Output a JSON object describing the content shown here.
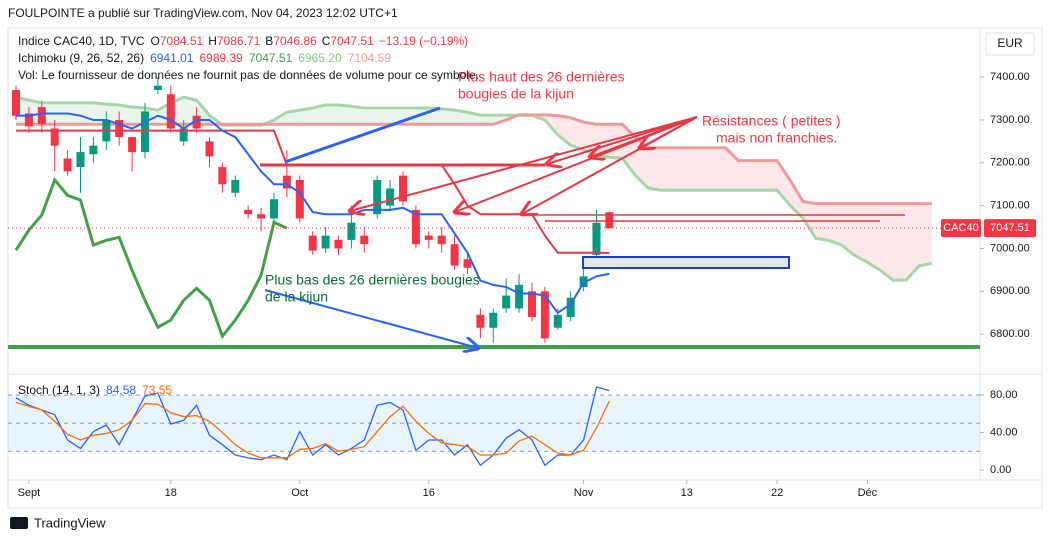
{
  "header": {
    "publisher": "FOULPOINTE a publié sur TradingView.com, Nov 04, 2023 12:02 UTC+1",
    "currency": "EUR",
    "brand": "TradingView"
  },
  "chart_data": [
    {
      "type": "candlestick",
      "title": "Indice CAC40, 1D, TVC",
      "legend_letters": [
        "O",
        "H",
        "B",
        "C"
      ],
      "change": "−13.19 (−0.19%)",
      "volume_note": "Vol: Le fournisseur de données ne fournit pas de données de volume pour ce symbole.",
      "symbol_tag": "CAC40",
      "up_color": "#089981",
      "down_color": "#f23645",
      "xlim": [
        -0.62,
        74.73
      ],
      "xticks": [
        {
          "value": 1,
          "label": "Sept"
        },
        {
          "value": 12,
          "label": "18"
        },
        {
          "value": 22,
          "label": "Oct"
        },
        {
          "value": 32,
          "label": "16"
        },
        {
          "value": 44,
          "label": "Nov"
        },
        {
          "value": 52,
          "label": "13"
        },
        {
          "value": 59,
          "label": "22"
        },
        {
          "value": 66,
          "label": "Déc"
        }
      ],
      "ylim": [
        6728,
        7510
      ],
      "yticks": [
        {
          "value": 6800,
          "label": "6800.00"
        },
        {
          "value": 6900,
          "label": "6900.00"
        },
        {
          "value": 7000,
          "label": "7000.00"
        },
        {
          "value": 7100,
          "label": "7100.00"
        },
        {
          "value": 7200,
          "label": "7200.00"
        },
        {
          "value": 7300,
          "label": "7300.00"
        },
        {
          "value": 7400,
          "label": "7400.00"
        }
      ],
      "open": [
        7370,
        7315,
        7330,
        7280,
        7210,
        7190,
        7220,
        7250,
        7300,
        7260,
        7225,
        7370,
        7360,
        7250,
        7310,
        7250,
        7190,
        7130,
        7090,
        7080,
        7070,
        7170,
        7160,
        7030,
        7000,
        7020,
        7020,
        7030,
        7080,
        7100,
        7170,
        7090,
        7030,
        7030,
        7010,
        6975,
        6845,
        6815,
        6860,
        6860,
        6900,
        6900,
        6815,
        6840,
        6910,
        6985,
        7084.51
      ],
      "high": [
        7380,
        7330,
        7345,
        7300,
        7230,
        7260,
        7260,
        7320,
        7320,
        7260,
        7340,
        7400,
        7380,
        7300,
        7330,
        7260,
        7200,
        7170,
        7100,
        7095,
        7130,
        7230,
        7170,
        7040,
        7050,
        7030,
        7100,
        7050,
        7170,
        7160,
        7180,
        7100,
        7040,
        7050,
        7030,
        6990,
        6860,
        6860,
        6930,
        6940,
        6920,
        6910,
        6860,
        6900,
        6960,
        7090,
        7086.71
      ],
      "low": [
        7300,
        7270,
        7270,
        7180,
        7170,
        7130,
        7200,
        7230,
        7240,
        7180,
        7210,
        7360,
        7270,
        7240,
        7270,
        7190,
        7130,
        7120,
        7070,
        7040,
        7060,
        7120,
        7060,
        6985,
        6990,
        6985,
        7000,
        6990,
        7070,
        7090,
        7100,
        7000,
        7000,
        6990,
        6950,
        6940,
        6790,
        6780,
        6850,
        6850,
        6830,
        6780,
        6810,
        6830,
        6900,
        6980,
        7046.86
      ],
      "close": [
        7310,
        7285,
        7290,
        7240,
        7180,
        7225,
        7240,
        7300,
        7260,
        7225,
        7320,
        7380,
        7280,
        7280,
        7280,
        7215,
        7150,
        7160,
        7080,
        7070,
        7115,
        7140,
        7070,
        6995,
        7030,
        7000,
        7060,
        7010,
        7160,
        7140,
        7110,
        7010,
        7020,
        7010,
        6960,
        6955,
        6815,
        6850,
        6890,
        6915,
        6840,
        6790,
        6845,
        6885,
        6935,
        7060,
        7047.51
      ],
      "ichimoku": {
        "title": "Ichimoku (9, 26, 52, 26)",
        "printed": [
          "6941.01",
          "6989.39",
          "7047.51",
          "6965.20",
          "7104.59"
        ],
        "conversion": {
          "color": "#2962ff",
          "values": [
            7310,
            7310,
            7315,
            7315,
            7315,
            7310,
            7300,
            7300,
            7290,
            7280,
            7295,
            7310,
            7300,
            7280,
            7300,
            7300,
            7275,
            7260,
            7220,
            7180,
            7150,
            7150,
            7130,
            7085,
            7080,
            7080,
            7080,
            7090,
            7090,
            7090,
            7095,
            7080,
            7080,
            7080,
            7035,
            6990,
            6925,
            6915,
            6910,
            6895,
            6895,
            6890,
            6850,
            6870,
            6920,
            6935,
            6941.01
          ]
        },
        "base": {
          "color": "#e53946",
          "values": [
            7275,
            7275,
            7275,
            7275,
            7275,
            7275,
            7275,
            7275,
            7275,
            7275,
            7275,
            7275,
            7275,
            7275,
            7275,
            7275,
            7275,
            7275,
            7275,
            7275,
            7275,
            7195,
            7195,
            7195,
            7195,
            7195,
            7195,
            7195,
            7195,
            7195,
            7195,
            7195,
            7195,
            7195,
            7150,
            7100,
            7080,
            7080,
            7080,
            7080,
            7080,
            7030,
            6990,
            6990,
            6990,
            6990,
            6989.39
          ]
        },
        "lagging": {
          "color": "#43a047",
          "values": [
            6996,
            7043,
            7078,
            7160,
            7124,
            7113,
            7008,
            7019,
            7026,
            6949,
            6879,
            6816,
            6833,
            6879,
            6907,
            6879,
            6795,
            6833,
            6879,
            6938,
            7061,
            7047.51
          ]
        },
        "span_a": {
          "color": "#a5d6a7",
          "values": [
            7353,
            7346,
            7340,
            7340,
            7340,
            7340,
            7340,
            7337,
            7335,
            7330,
            7328,
            7323,
            7340,
            7353,
            7346,
            7311,
            7288,
            7288,
            7288,
            7288,
            7300,
            7318,
            7323,
            7328,
            7335,
            7335,
            7332,
            7328,
            7328,
            7328,
            7328,
            7328,
            7328,
            7326,
            7323,
            7318,
            7311,
            7311,
            7311,
            7311,
            7311,
            7300,
            7265,
            7241,
            7230,
            7218,
            7213,
            7211,
            7171,
            7141,
            7136,
            7136,
            7136,
            7136,
            7136,
            7136,
            7136,
            7136,
            7136,
            7136,
            7101,
            7071,
            7024,
            7019,
            7008,
            6984,
            6968,
            6949,
            6926,
            6926,
            6959,
            6965.2
          ]
        },
        "span_b": {
          "color": "#ef9a9a",
          "values": [
            7290,
            7290,
            7290,
            7290,
            7290,
            7290,
            7290,
            7290,
            7290,
            7290,
            7290,
            7290,
            7290,
            7290,
            7290,
            7290,
            7290,
            7290,
            7290,
            7290,
            7290,
            7290,
            7290,
            7290,
            7290,
            7290,
            7290,
            7290,
            7290,
            7290,
            7290,
            7290,
            7290,
            7290,
            7290,
            7290,
            7290,
            7290,
            7300,
            7312,
            7312,
            7312,
            7310,
            7305,
            7295,
            7290,
            7290,
            7290,
            7260,
            7235,
            7235,
            7235,
            7235,
            7235,
            7235,
            7235,
            7205,
            7205,
            7205,
            7205,
            7160,
            7110,
            7104.59,
            7104.59,
            7104.59,
            7104.59,
            7104.59,
            7104.59,
            7104.59,
            7104.59,
            7104.59,
            7104.59
          ]
        },
        "cloud_up": "rgba(76,175,80,0.12)",
        "cloud_down": "rgba(242,54,69,0.12)"
      },
      "annotations": [
        {
          "lines": [
            "Plus haut des 26 dernières",
            "bougies de la kijun"
          ],
          "color": "#f23645"
        },
        {
          "lines": [
            "Résistances ( petites )",
            "mais non franchies."
          ],
          "color": "#f23645"
        },
        {
          "lines": [
            "Plus bas des 26 dernières bougies",
            "de la kijun"
          ],
          "color": "#0b6b3a"
        }
      ]
    },
    {
      "type": "line",
      "title": "Stoch (14, 1, 3)",
      "ylim": [
        -8.5,
        98.1
      ],
      "yticks": [
        {
          "value": 0,
          "label": "0.00"
        },
        {
          "value": 40,
          "label": "40.00"
        },
        {
          "value": 80,
          "label": "80.00"
        }
      ],
      "band": [
        20,
        80
      ],
      "midline": 50,
      "band_color": "rgba(33,150,243,0.1)",
      "series": [
        {
          "color": "#2962ff",
          "values": [
            77,
            69,
            64,
            59,
            32,
            23,
            41,
            48,
            27,
            53,
            79,
            82,
            49,
            53,
            69,
            37,
            27,
            16,
            13,
            11,
            16,
            11,
            41,
            16,
            27,
            16,
            23,
            32,
            69,
            72,
            64,
            21,
            32,
            32,
            16,
            27,
            5,
            16,
            34,
            43,
            32,
            5,
            16,
            16,
            32,
            88.5,
            84.58
          ]
        },
        {
          "color": "#ff6d00",
          "values": [
            72,
            68,
            64,
            52,
            38,
            32,
            37,
            39,
            43,
            53,
            71,
            70,
            61,
            57,
            58,
            52,
            40,
            27,
            18,
            13,
            13,
            13,
            22,
            23,
            28,
            20,
            22,
            25,
            41,
            57,
            68,
            52,
            39,
            29,
            27,
            25,
            16,
            16,
            18,
            31,
            36,
            27,
            18,
            16,
            21,
            45,
            73.55
          ]
        }
      ]
    }
  ]
}
